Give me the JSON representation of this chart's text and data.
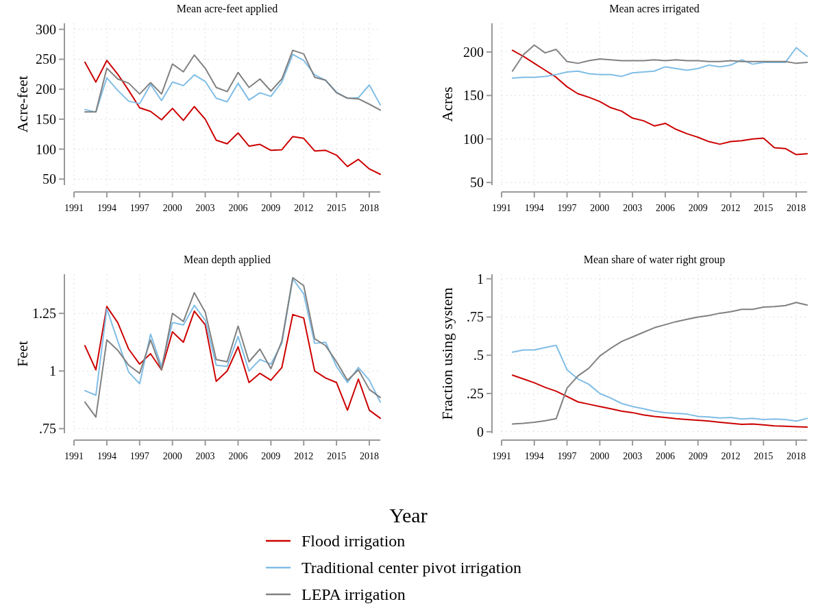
{
  "chart_data": [
    {
      "type": "line",
      "title": "Mean acre-feet applied",
      "ylabel": "Acre-feet",
      "x": [
        1992,
        1993,
        1994,
        1995,
        1996,
        1997,
        1998,
        1999,
        2000,
        2001,
        2002,
        2003,
        2004,
        2005,
        2006,
        2007,
        2008,
        2009,
        2010,
        2011,
        2012,
        2013,
        2014,
        2015,
        2016,
        2017,
        2018,
        2019
      ],
      "xlim": [
        1991,
        2019
      ],
      "xticks": [
        1991,
        1994,
        1997,
        2000,
        2003,
        2006,
        2009,
        2012,
        2015,
        2018
      ],
      "ylim": [
        40,
        310
      ],
      "yticks": [
        50,
        100,
        150,
        200,
        250,
        300
      ],
      "grid": true,
      "legend": false,
      "series": [
        {
          "color": "#cc0000",
          "values": [
            245,
            212,
            248,
            225,
            198,
            169,
            163,
            149,
            168,
            148,
            171,
            150,
            115,
            109,
            127,
            105,
            108,
            98,
            99,
            121,
            118,
            97,
            98,
            90,
            71,
            83,
            67,
            58
          ]
        },
        {
          "color": "#7fbde6",
          "values": [
            166,
            162,
            219,
            198,
            180,
            176,
            208,
            181,
            212,
            206,
            224,
            213,
            185,
            179,
            210,
            182,
            194,
            188,
            212,
            258,
            248,
            224,
            215,
            195,
            185,
            186,
            207,
            174
          ]
        },
        {
          "color": "#808080",
          "values": [
            162,
            162,
            235,
            217,
            210,
            192,
            211,
            192,
            242,
            229,
            257,
            235,
            203,
            196,
            228,
            203,
            217,
            197,
            217,
            265,
            259,
            220,
            215,
            194,
            185,
            184,
            175,
            165
          ]
        }
      ]
    },
    {
      "type": "line",
      "title": "Mean acres irrigated",
      "ylabel": "Acres",
      "x": [
        1992,
        1993,
        1994,
        1995,
        1996,
        1997,
        1998,
        1999,
        2000,
        2001,
        2002,
        2003,
        2004,
        2005,
        2006,
        2007,
        2008,
        2009,
        2010,
        2011,
        2012,
        2013,
        2014,
        2015,
        2016,
        2017,
        2018,
        2019
      ],
      "xlim": [
        1991,
        2019
      ],
      "xticks": [
        1991,
        1994,
        1997,
        2000,
        2003,
        2006,
        2009,
        2012,
        2015,
        2018
      ],
      "ylim": [
        47,
        233
      ],
      "yticks": [
        50,
        100,
        150,
        200
      ],
      "grid": true,
      "legend": false,
      "series": [
        {
          "color": "#cc0000",
          "values": [
            202,
            195,
            187,
            179,
            171,
            160,
            152,
            148,
            143,
            136,
            132,
            124,
            121,
            115,
            118,
            111,
            106,
            102,
            97,
            94,
            97,
            98,
            100,
            101,
            90,
            89,
            82,
            83
          ]
        },
        {
          "color": "#7fbde6",
          "values": [
            170,
            171,
            171,
            172,
            174,
            177,
            178,
            175,
            174,
            174,
            172,
            176,
            177,
            178,
            183,
            181,
            179,
            181,
            185,
            183,
            185,
            191,
            186,
            188,
            188,
            188,
            205,
            195
          ]
        },
        {
          "color": "#808080",
          "values": [
            178,
            197,
            208,
            199,
            203,
            189,
            187,
            190,
            192,
            191,
            190,
            190,
            190,
            191,
            190,
            191,
            190,
            190,
            189,
            189,
            190,
            189,
            189,
            189,
            189,
            189,
            187,
            188
          ]
        }
      ]
    },
    {
      "type": "line",
      "title": "Mean depth applied",
      "ylabel": "Feet",
      "xlabel": "Year",
      "x": [
        1992,
        1993,
        1994,
        1995,
        1996,
        1997,
        1998,
        1999,
        2000,
        2001,
        2002,
        2003,
        2004,
        2005,
        2006,
        2007,
        2008,
        2009,
        2010,
        2011,
        2012,
        2013,
        2014,
        2015,
        2016,
        2017,
        2018,
        2019
      ],
      "xlim": [
        1991,
        2019
      ],
      "xticks": [
        1991,
        1994,
        1997,
        2000,
        2003,
        2006,
        2009,
        2012,
        2015,
        2018
      ],
      "ylim": [
        0.73,
        1.42
      ],
      "yticks": [
        {
          "value": 0.75,
          "label": ".75"
        },
        1,
        {
          "value": 1.25,
          "label": "1.25"
        }
      ],
      "grid": true,
      "legend": false,
      "series": [
        {
          "color": "#cc0000",
          "values": [
            1.11,
            1.005,
            1.28,
            1.21,
            1.095,
            1.03,
            1.075,
            1.005,
            1.17,
            1.125,
            1.26,
            1.2,
            0.955,
            1.0,
            1.105,
            0.95,
            0.99,
            0.96,
            1.015,
            1.245,
            1.23,
            1.0,
            0.97,
            0.95,
            0.83,
            0.965,
            0.83,
            0.795
          ]
        },
        {
          "color": "#7fbde6",
          "values": [
            0.915,
            0.895,
            1.27,
            1.13,
            0.995,
            0.945,
            1.16,
            1.02,
            1.21,
            1.2,
            1.285,
            1.22,
            1.025,
            1.02,
            1.15,
            1.0,
            1.05,
            1.03,
            1.12,
            1.4,
            1.335,
            1.12,
            1.125,
            1.02,
            0.95,
            1.015,
            0.96,
            0.865
          ]
        },
        {
          "color": "#808080",
          "values": [
            0.865,
            0.8,
            1.135,
            1.09,
            1.025,
            0.99,
            1.135,
            1.005,
            1.25,
            1.215,
            1.34,
            1.255,
            1.05,
            1.04,
            1.195,
            1.04,
            1.095,
            1.01,
            1.13,
            1.405,
            1.37,
            1.14,
            1.11,
            1.04,
            0.96,
            1.005,
            0.92,
            0.885
          ]
        }
      ]
    },
    {
      "type": "line",
      "title": "Mean share of water right group",
      "ylabel": "Fraction using system",
      "x": [
        1992,
        1993,
        1994,
        1995,
        1996,
        1997,
        1998,
        1999,
        2000,
        2001,
        2002,
        2003,
        2004,
        2005,
        2006,
        2007,
        2008,
        2009,
        2010,
        2011,
        2012,
        2013,
        2014,
        2015,
        2016,
        2017,
        2018,
        2019
      ],
      "xlim": [
        1991,
        2019
      ],
      "xticks": [
        1991,
        1994,
        1997,
        2000,
        2003,
        2006,
        2009,
        2012,
        2015,
        2018
      ],
      "ylim": [
        -0.01,
        1.03
      ],
      "yticks": [
        0,
        {
          "value": 0.25,
          "label": ".25"
        },
        {
          "value": 0.5,
          "label": ".5"
        },
        {
          "value": 0.75,
          "label": ".75"
        },
        1
      ],
      "grid": true,
      "legend": "bottom",
      "series": [
        {
          "name": "Flood irrigation",
          "color": "#cc0000",
          "values": [
            0.37,
            0.345,
            0.32,
            0.29,
            0.265,
            0.23,
            0.195,
            0.18,
            0.165,
            0.15,
            0.135,
            0.125,
            0.11,
            0.1,
            0.093,
            0.085,
            0.08,
            0.075,
            0.07,
            0.062,
            0.055,
            0.048,
            0.05,
            0.045,
            0.038,
            0.036,
            0.033,
            0.03
          ]
        },
        {
          "name": "Traditional center pivot irrigation",
          "color": "#7fbde6",
          "values": [
            0.52,
            0.535,
            0.535,
            0.55,
            0.565,
            0.405,
            0.345,
            0.31,
            0.25,
            0.22,
            0.185,
            0.165,
            0.15,
            0.135,
            0.125,
            0.12,
            0.115,
            0.1,
            0.097,
            0.09,
            0.093,
            0.083,
            0.087,
            0.08,
            0.083,
            0.08,
            0.07,
            0.087
          ]
        },
        {
          "name": "LEPA irrigation",
          "color": "#808080",
          "values": [
            0.05,
            0.055,
            0.062,
            0.072,
            0.085,
            0.285,
            0.365,
            0.415,
            0.495,
            0.545,
            0.59,
            0.62,
            0.65,
            0.68,
            0.7,
            0.72,
            0.735,
            0.75,
            0.76,
            0.775,
            0.785,
            0.8,
            0.8,
            0.815,
            0.818,
            0.825,
            0.845,
            0.828
          ]
        }
      ]
    }
  ]
}
